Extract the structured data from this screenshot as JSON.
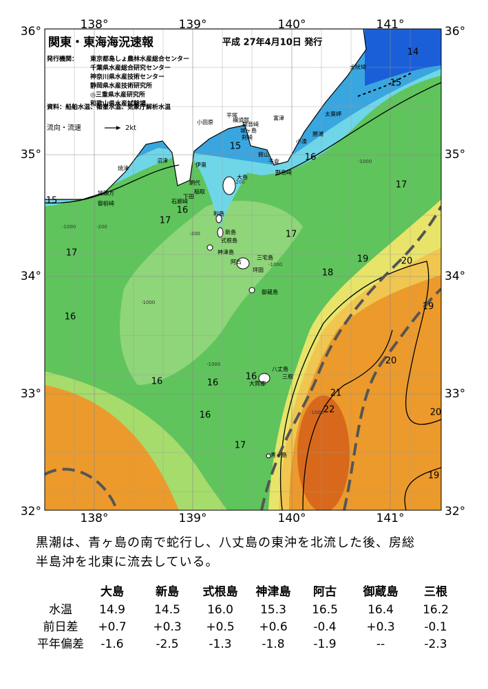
{
  "header": {
    "title": "関東・東海海況速報",
    "date": "平成 27年4月10日 発行",
    "issuer_label": "発行機関：",
    "issuers": [
      "東京都島しょ農林水産総合センター",
      "千葉県水産総合研究センター",
      "神奈川県水産技術センター",
      "静岡県水産技術研究所",
      "◎三重県水産研究所",
      "和歌山県水産試験場"
    ],
    "sources": "資料：船舶水温、衛星水温、気象庁解析水温",
    "legend_label": "流向・流速",
    "legend_unit": "2kt"
  },
  "map": {
    "lon_labels": [
      "138°",
      "139°",
      "140°",
      "141°"
    ],
    "lat_labels": [
      "36°",
      "35°",
      "34°",
      "33°",
      "32°"
    ],
    "isotherm_labels": [
      "14",
      "15",
      "15",
      "16",
      "17",
      "15",
      "16",
      "17",
      "17",
      "17",
      "19",
      "20",
      "18",
      "19",
      "16",
      "20",
      "16",
      "16",
      "16",
      "21",
      "22",
      "20",
      "16",
      "17",
      "19"
    ],
    "depth_labels": [
      "-200",
      "-1000",
      "-200",
      "-1000",
      "-1000",
      "-200",
      "-1000",
      "-1000",
      "-1000"
    ],
    "places": [
      "犬吠埼",
      "太東岬",
      "勝浦",
      "小湊",
      "館山",
      "千倉",
      "野島崎",
      "平塚",
      "横須賀",
      "観音崎",
      "城ヶ島",
      "剣崎",
      "富津",
      "小田原",
      "沼津",
      "伊東",
      "焼津",
      "網代",
      "稲取",
      "下田",
      "石廊崎",
      "御前崎",
      "地頭方",
      "大島",
      "利島",
      "新島",
      "式根島",
      "神津島",
      "三宅島",
      "阿古",
      "坪田",
      "御蔵島",
      "八丈島",
      "大賀郷",
      "三根",
      "青ヶ島"
    ]
  },
  "caption": [
    "黒潮は、青ヶ島の南で蛇行し、八丈島の東沖を北流した後、房総",
    "半島沖を北東に流去している。"
  ],
  "table": {
    "columns": [
      "大島",
      "新島",
      "式根島",
      "神津島",
      "阿古",
      "御蔵島",
      "三根"
    ],
    "rows": [
      [
        "水温",
        "14.9",
        "14.5",
        "16.0",
        "15.3",
        "16.5",
        "16.4",
        "16.2"
      ],
      [
        "前日差",
        "+0.7",
        "+0.3",
        "+0.5",
        "+0.6",
        "-0.4",
        "+0.3",
        "-0.1"
      ],
      [
        "平年偏差",
        "-1.6",
        "-2.5",
        "-1.3",
        "-1.8",
        "-1.9",
        "--",
        "-2.3"
      ]
    ]
  }
}
